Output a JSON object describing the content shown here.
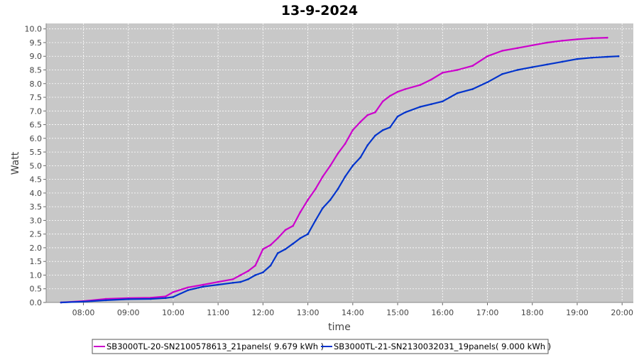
{
  "chart_data": {
    "type": "line",
    "title": "13-9-2024",
    "xlabel": "time",
    "ylabel": "Watt",
    "x_ticks": [
      "08:00",
      "09:00",
      "10:00",
      "11:00",
      "12:00",
      "13:00",
      "14:00",
      "15:00",
      "16:00",
      "17:00",
      "18:00",
      "19:00",
      "20:00"
    ],
    "y_ticks": [
      "0.0",
      "0.5",
      "1.0",
      "1.5",
      "2.0",
      "2.5",
      "3.0",
      "3.5",
      "4.0",
      "4.5",
      "5.0",
      "5.5",
      "6.0",
      "6.5",
      "7.0",
      "7.5",
      "8.0",
      "8.5",
      "9.0",
      "9.5",
      "10.0"
    ],
    "xlim": [
      7.17,
      20.25
    ],
    "ylim": [
      0,
      10.2
    ],
    "grid": true,
    "legend_position": "bottom",
    "series": [
      {
        "name": "SB3000TL-20-SN2100578613_21panels( 9.679 kWh )",
        "color": "#cc00cc",
        "x": [
          7.5,
          8.0,
          8.5,
          9.0,
          9.5,
          9.83,
          10.0,
          10.33,
          10.67,
          11.0,
          11.33,
          11.5,
          11.67,
          11.83,
          12.0,
          12.17,
          12.33,
          12.5,
          12.67,
          12.83,
          13.0,
          13.17,
          13.33,
          13.5,
          13.67,
          13.83,
          14.0,
          14.17,
          14.33,
          14.5,
          14.67,
          14.83,
          15.0,
          15.17,
          15.5,
          15.75,
          16.0,
          16.33,
          16.67,
          17.0,
          17.33,
          17.67,
          18.0,
          18.33,
          18.67,
          19.0,
          19.33,
          19.67
        ],
        "y": [
          0.0,
          0.05,
          0.13,
          0.16,
          0.17,
          0.22,
          0.38,
          0.55,
          0.65,
          0.75,
          0.85,
          1.0,
          1.15,
          1.35,
          1.95,
          2.1,
          2.35,
          2.65,
          2.8,
          3.3,
          3.75,
          4.15,
          4.6,
          5.0,
          5.45,
          5.8,
          6.3,
          6.6,
          6.85,
          6.95,
          7.35,
          7.55,
          7.7,
          7.8,
          7.95,
          8.15,
          8.4,
          8.5,
          8.65,
          9.0,
          9.2,
          9.3,
          9.4,
          9.5,
          9.57,
          9.62,
          9.66,
          9.679
        ]
      },
      {
        "name": "SB3000TL-21-SN2130032031_19panels( 9.000 kWh )",
        "color": "#0033cc",
        "x": [
          7.5,
          8.0,
          8.5,
          9.0,
          9.5,
          9.83,
          10.0,
          10.33,
          10.67,
          11.0,
          11.33,
          11.5,
          11.67,
          11.83,
          12.0,
          12.17,
          12.33,
          12.5,
          12.67,
          12.83,
          13.0,
          13.17,
          13.33,
          13.5,
          13.67,
          13.83,
          14.0,
          14.17,
          14.33,
          14.5,
          14.67,
          14.83,
          15.0,
          15.17,
          15.5,
          15.75,
          16.0,
          16.33,
          16.67,
          17.0,
          17.33,
          17.67,
          18.0,
          18.33,
          18.67,
          19.0,
          19.33,
          19.67,
          19.92
        ],
        "y": [
          0.0,
          0.03,
          0.08,
          0.12,
          0.13,
          0.16,
          0.2,
          0.45,
          0.58,
          0.65,
          0.72,
          0.75,
          0.85,
          1.0,
          1.1,
          1.35,
          1.8,
          1.95,
          2.15,
          2.35,
          2.5,
          3.0,
          3.45,
          3.75,
          4.15,
          4.6,
          5.0,
          5.3,
          5.75,
          6.1,
          6.3,
          6.4,
          6.8,
          6.95,
          7.15,
          7.25,
          7.35,
          7.65,
          7.8,
          8.05,
          8.35,
          8.5,
          8.6,
          8.7,
          8.8,
          8.9,
          8.95,
          8.98,
          9.0
        ]
      }
    ]
  }
}
